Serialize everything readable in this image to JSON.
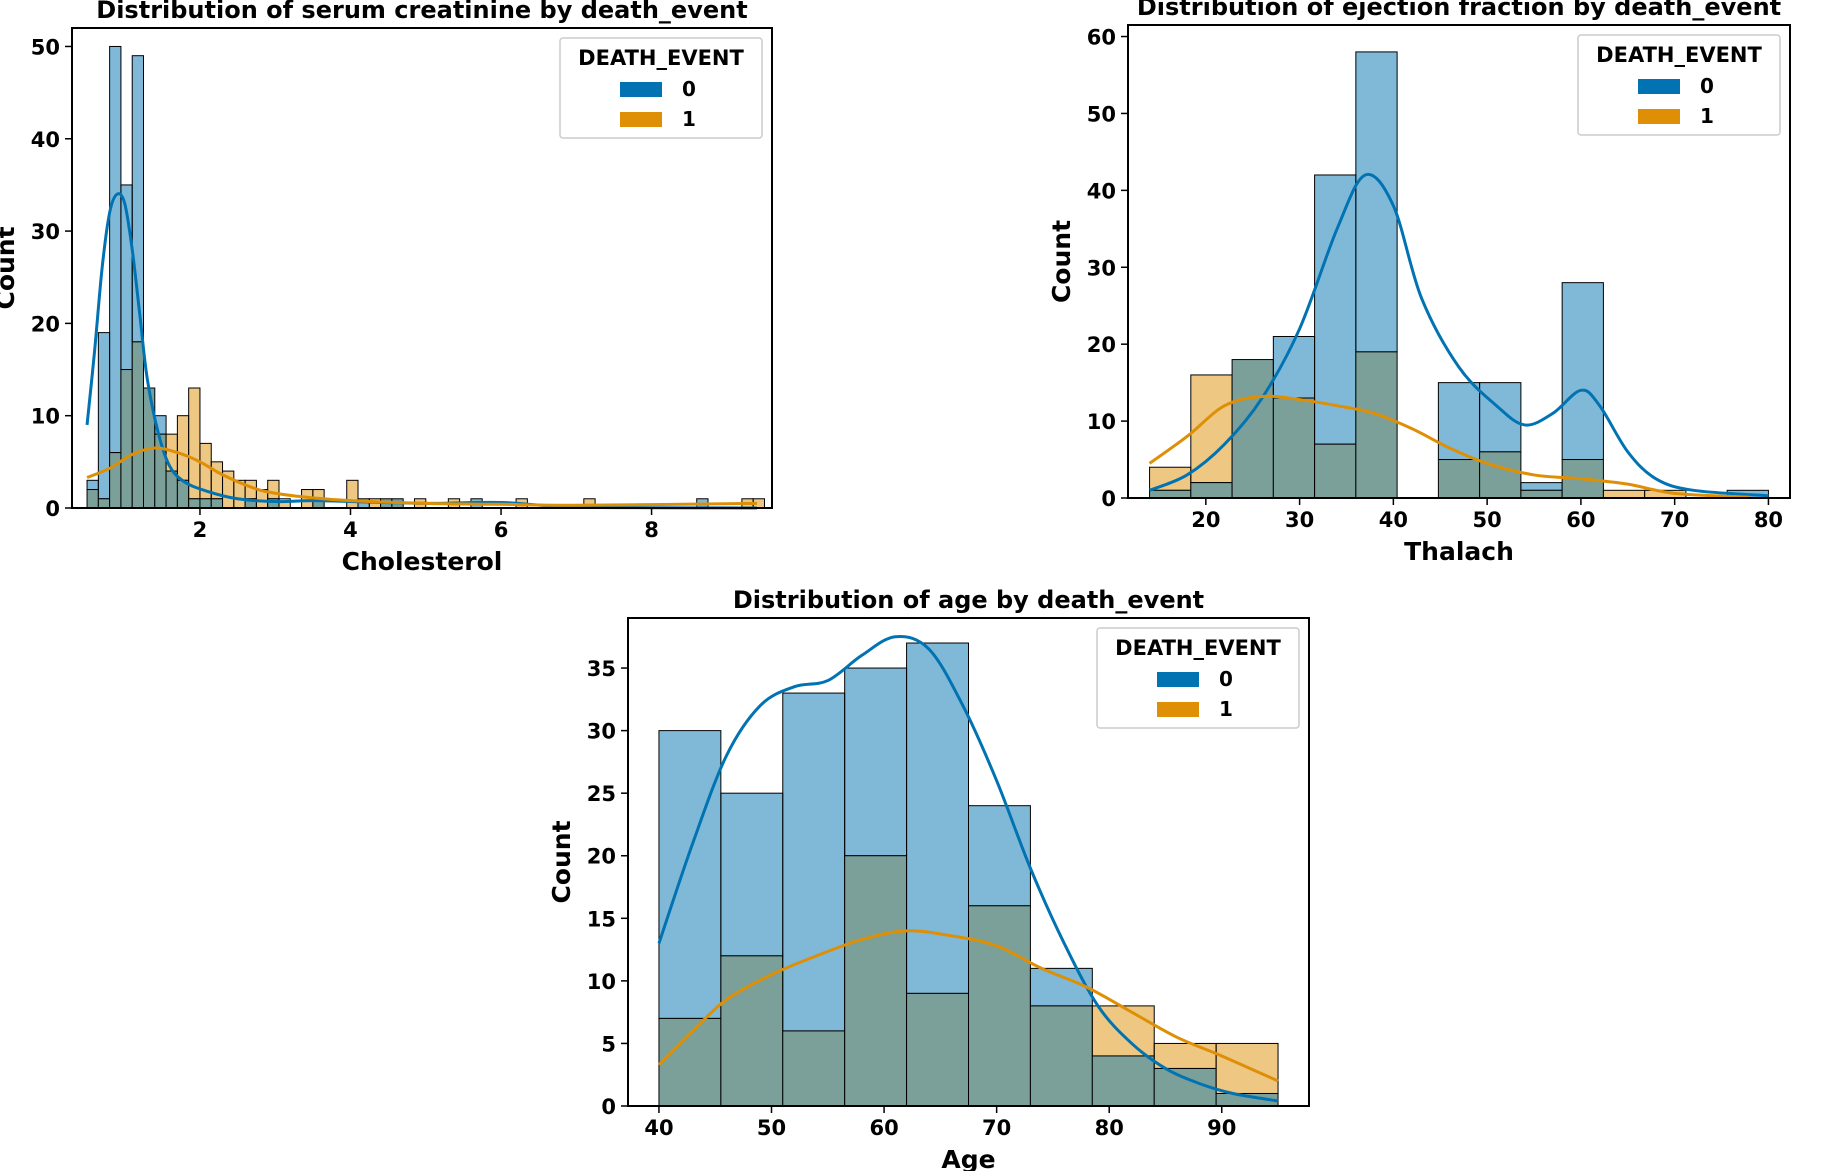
{
  "colors": {
    "class0": "#0173b2",
    "class1": "#de8f05",
    "overlap": "#7ba099"
  },
  "chart_data": [
    {
      "type": "histogram",
      "title": "Distribution of serum creatinine by death_event",
      "xlabel": "Cholesterol",
      "ylabel": "Count",
      "xlim": [
        0.3,
        9.6
      ],
      "ylim": [
        0,
        52
      ],
      "xticks": [
        2,
        4,
        6,
        8
      ],
      "yticks": [
        0,
        10,
        20,
        30,
        40,
        50
      ],
      "legend": {
        "title": "DEATH_EVENT",
        "entries": [
          "0",
          "1"
        ],
        "position": "top-right"
      },
      "bin_start": 0.5,
      "bin_width": 0.15,
      "series": [
        {
          "name": "0",
          "counts": [
            3,
            19,
            50,
            35,
            49,
            13,
            10,
            4,
            3,
            1,
            1,
            1,
            0,
            0,
            1,
            0,
            1,
            0,
            0,
            0,
            1,
            0,
            0,
            0,
            1,
            0,
            1,
            1,
            0,
            0,
            0,
            0,
            0,
            0,
            1,
            0,
            0,
            0,
            0,
            0,
            0,
            0,
            0,
            0,
            0,
            0,
            0,
            0,
            0,
            0,
            0,
            0,
            0,
            0,
            1,
            0,
            0,
            0,
            0,
            0
          ],
          "kde": [
            [
              0.5,
              9
            ],
            [
              0.6,
              17
            ],
            [
              0.7,
              26
            ],
            [
              0.8,
              32
            ],
            [
              0.9,
              34
            ],
            [
              1.0,
              33
            ],
            [
              1.1,
              28
            ],
            [
              1.2,
              21
            ],
            [
              1.3,
              14
            ],
            [
              1.45,
              8
            ],
            [
              1.6,
              4.5
            ],
            [
              1.8,
              2.8
            ],
            [
              2.1,
              1.8
            ],
            [
              2.5,
              1
            ],
            [
              3.0,
              0.7
            ],
            [
              3.5,
              0.8
            ],
            [
              4.0,
              0.7
            ],
            [
              5.0,
              0.5
            ],
            [
              6.0,
              0.6
            ],
            [
              7.0,
              0.1
            ],
            [
              9.4,
              0
            ]
          ]
        },
        {
          "name": "1",
          "counts": [
            2,
            1,
            6,
            15,
            18,
            13,
            8,
            8,
            10,
            13,
            7,
            5,
            4,
            3,
            3,
            2,
            3,
            1,
            0,
            2,
            2,
            0,
            0,
            3,
            0,
            1,
            1,
            1,
            0,
            1,
            0,
            0,
            1,
            0,
            0,
            0,
            0,
            0,
            1,
            0,
            0,
            0,
            0,
            0,
            1,
            0,
            0,
            0,
            0,
            0,
            0,
            0,
            0,
            0,
            0,
            0,
            0,
            0,
            1,
            1
          ],
          "kde": [
            [
              0.5,
              3.3
            ],
            [
              0.8,
              4.3
            ],
            [
              1.1,
              5.8
            ],
            [
              1.4,
              6.5
            ],
            [
              1.7,
              6
            ],
            [
              2.0,
              5
            ],
            [
              2.3,
              3.6
            ],
            [
              2.7,
              2.2
            ],
            [
              3.0,
              1.6
            ],
            [
              3.5,
              1.1
            ],
            [
              4.0,
              0.8
            ],
            [
              5.0,
              0.5
            ],
            [
              6.0,
              0.4
            ],
            [
              7.0,
              0.3
            ],
            [
              9.4,
              0.5
            ]
          ]
        }
      ]
    },
    {
      "type": "histogram",
      "title": "Distribution of ejection fraction by death_event",
      "xlabel": "Thalach",
      "ylabel": "Count",
      "xlim": [
        11.7,
        82.3
      ],
      "ylim": [
        0,
        61.5
      ],
      "xticks": [
        20,
        30,
        40,
        50,
        60,
        70,
        80
      ],
      "yticks": [
        0,
        10,
        20,
        30,
        40,
        50,
        60
      ],
      "legend": {
        "title": "DEATH_EVENT",
        "entries": [
          "0",
          "1"
        ],
        "position": "top-right"
      },
      "bin_start": 14,
      "bin_width": 4.4,
      "series": [
        {
          "name": "0",
          "counts": [
            1,
            2,
            18,
            21,
            42,
            58,
            0,
            15,
            15,
            2,
            28,
            0,
            0,
            0,
            1
          ],
          "kde": [
            [
              14,
              1
            ],
            [
              18,
              3
            ],
            [
              22,
              7
            ],
            [
              26,
              13
            ],
            [
              30,
              22
            ],
            [
              34,
              35
            ],
            [
              37,
              42
            ],
            [
              40,
              38
            ],
            [
              43,
              26
            ],
            [
              47,
              17
            ],
            [
              51,
              12
            ],
            [
              54,
              9.5
            ],
            [
              57,
              11
            ],
            [
              60,
              14
            ],
            [
              62,
              12
            ],
            [
              65,
              6
            ],
            [
              68,
              2.5
            ],
            [
              72,
              1
            ],
            [
              80,
              0.3
            ]
          ]
        },
        {
          "name": "1",
          "counts": [
            4,
            16,
            18,
            13,
            7,
            19,
            0,
            5,
            6,
            1,
            5,
            1,
            1,
            0,
            0
          ],
          "kde": [
            [
              14,
              4.5
            ],
            [
              18,
              8
            ],
            [
              22,
              12
            ],
            [
              26,
              13.2
            ],
            [
              30,
              12.8
            ],
            [
              34,
              12
            ],
            [
              38,
              11
            ],
            [
              42,
              9
            ],
            [
              46,
              6.5
            ],
            [
              50,
              4.5
            ],
            [
              55,
              3
            ],
            [
              60,
              2.5
            ],
            [
              65,
              1.8
            ],
            [
              70,
              0.6
            ],
            [
              78,
              0.1
            ]
          ]
        }
      ]
    },
    {
      "type": "histogram",
      "title": "Distribution of age by death_event",
      "xlabel": "Age",
      "ylabel": "Count",
      "xlim": [
        37.25,
        97.75
      ],
      "ylim": [
        0,
        39
      ],
      "xticks": [
        40,
        50,
        60,
        70,
        80,
        90
      ],
      "yticks": [
        0,
        5,
        10,
        15,
        20,
        25,
        30,
        35
      ],
      "legend": {
        "title": "DEATH_EVENT",
        "entries": [
          "0",
          "1"
        ],
        "position": "top-right"
      },
      "bin_start": 40,
      "bin_width": 5.5,
      "series": [
        {
          "name": "0",
          "counts": [
            30,
            25,
            33,
            35,
            37,
            24,
            11,
            4,
            3,
            1
          ],
          "kde": [
            [
              40,
              13
            ],
            [
              43,
              21
            ],
            [
              46,
              28
            ],
            [
              49,
              32
            ],
            [
              52,
              33.5
            ],
            [
              55,
              34
            ],
            [
              58,
              36
            ],
            [
              61,
              37.5
            ],
            [
              64,
              36.5
            ],
            [
              67,
              32
            ],
            [
              70,
              26
            ],
            [
              73,
              19
            ],
            [
              76,
              13
            ],
            [
              79,
              8
            ],
            [
              82,
              5
            ],
            [
              85,
              3
            ],
            [
              88,
              1.8
            ],
            [
              91,
              1
            ],
            [
              95,
              0.4
            ]
          ]
        },
        {
          "name": "1",
          "counts": [
            7,
            12,
            6,
            20,
            9,
            16,
            8,
            8,
            5,
            5
          ],
          "kde": [
            [
              40,
              3.3
            ],
            [
              43,
              6
            ],
            [
              46,
              8.5
            ],
            [
              50,
              10.5
            ],
            [
              54,
              12
            ],
            [
              58,
              13.3
            ],
            [
              62,
              14
            ],
            [
              66,
              13.6
            ],
            [
              70,
              12.8
            ],
            [
              74,
              11
            ],
            [
              78,
              9.5
            ],
            [
              82,
              7.5
            ],
            [
              86,
              5.5
            ],
            [
              90,
              4
            ],
            [
              95,
              2
            ]
          ]
        }
      ]
    }
  ]
}
